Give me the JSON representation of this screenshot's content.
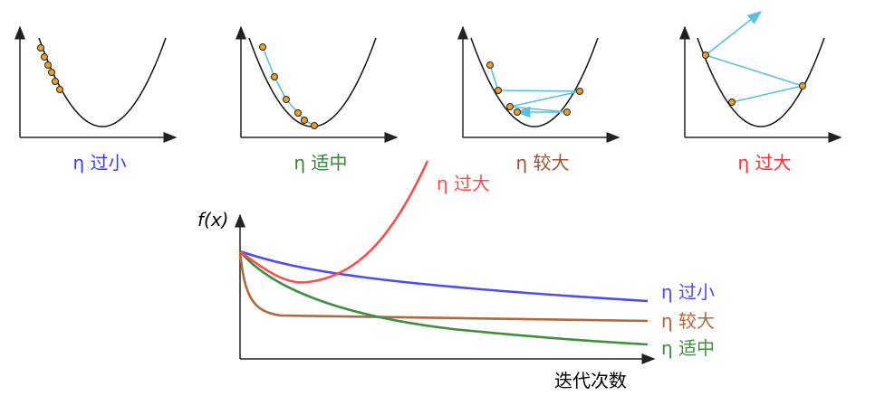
{
  "panels": [
    {
      "label": "η 过小",
      "color": "#3a3aff"
    },
    {
      "label": "η 适中",
      "color": "#2f8a2f"
    },
    {
      "label": "η 较大",
      "color": "#a0522d"
    },
    {
      "label": "η 过大",
      "color": "#ff3030"
    }
  ],
  "plot": {
    "y_label": "f(x)",
    "x_label": "迭代次数",
    "curves": [
      {
        "label": "η 过大",
        "color": "#ff4a4a"
      },
      {
        "label": "η 过小",
        "color": "#4a4aff"
      },
      {
        "label": "η 较大",
        "color": "#b0683e"
      },
      {
        "label": "η 适中",
        "color": "#3f8f3f"
      }
    ]
  }
}
